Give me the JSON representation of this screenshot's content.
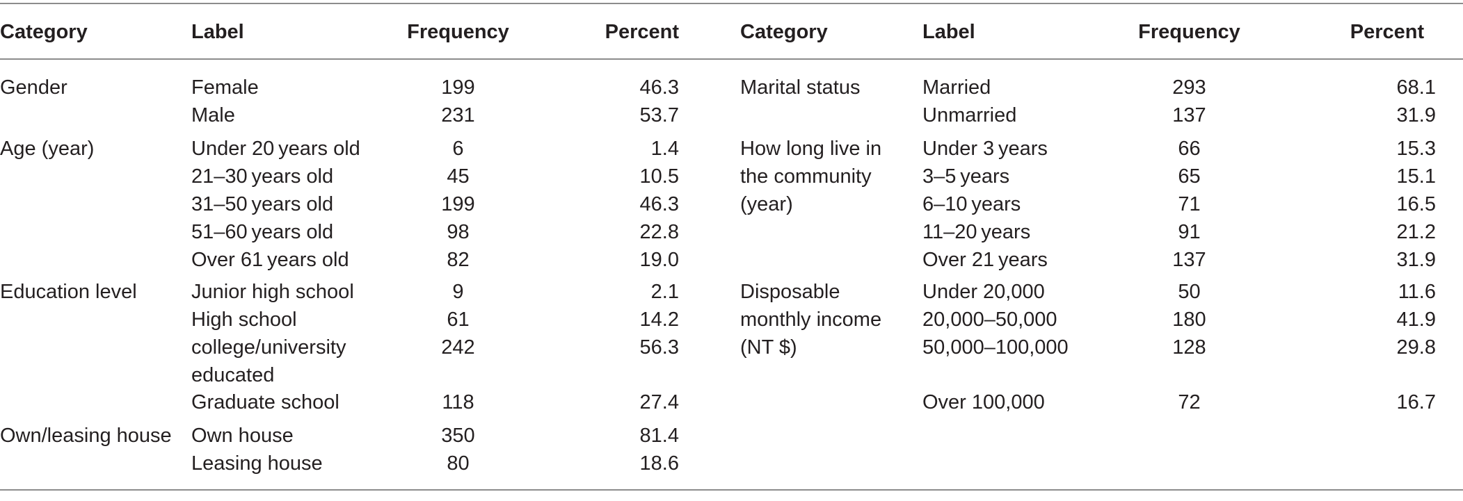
{
  "headers": {
    "left": {
      "category": "Category",
      "label": "Label",
      "frequency": "Frequency",
      "percent": "Percent"
    },
    "right": {
      "category": "Category",
      "label": "Label",
      "frequency": "Frequency",
      "percent": "Percent"
    }
  },
  "left_rows": [
    {
      "category": "Gender",
      "label": "Female",
      "frequency": "199",
      "percent": "46.3"
    },
    {
      "category": "",
      "label": "Male",
      "frequency": "231",
      "percent": "53.7"
    },
    {
      "category": "Age (year)",
      "label": "Under 20 years old",
      "frequency": "6",
      "percent": "1.4"
    },
    {
      "category": "",
      "label": "21–30 years old",
      "frequency": "45",
      "percent": "10.5"
    },
    {
      "category": "",
      "label": "31–50 years old",
      "frequency": "199",
      "percent": "46.3"
    },
    {
      "category": "",
      "label": "51–60 years old",
      "frequency": "98",
      "percent": "22.8"
    },
    {
      "category": "",
      "label": "Over 61 years old",
      "frequency": "82",
      "percent": "19.0"
    },
    {
      "category": "Education level",
      "label": "Junior high school",
      "frequency": "9",
      "percent": "2.1"
    },
    {
      "category": "",
      "label": "High school",
      "frequency": "61",
      "percent": "14.2"
    },
    {
      "category": "",
      "label": "college/university",
      "label2": "educated",
      "frequency": "242",
      "percent": "56.3"
    },
    {
      "category": "",
      "label": "Graduate school",
      "frequency": "118",
      "percent": "27.4"
    },
    {
      "category": "Own/leasing house",
      "label": "Own house",
      "frequency": "350",
      "percent": "81.4"
    },
    {
      "category": "",
      "label": "Leasing house",
      "frequency": "80",
      "percent": "18.6"
    }
  ],
  "right_rows": [
    {
      "category": "Marital status",
      "label": "Married",
      "frequency": "293",
      "percent": "68.1"
    },
    {
      "category": "",
      "label": "Unmarried",
      "frequency": "137",
      "percent": "31.9"
    },
    {
      "category": "How long live in",
      "category2": "the community",
      "category3": "(year)",
      "label": "Under 3 years",
      "frequency": "66",
      "percent": "15.3"
    },
    {
      "category": "",
      "label": "3–5 years",
      "frequency": "65",
      "percent": "15.1"
    },
    {
      "category": "",
      "label": "6–10 years",
      "frequency": "71",
      "percent": "16.5"
    },
    {
      "category": "",
      "label": "11–20 years",
      "frequency": "91",
      "percent": "21.2"
    },
    {
      "category": "",
      "label": "Over 21 years",
      "frequency": "137",
      "percent": "31.9"
    },
    {
      "category": "Disposable",
      "category2": "monthly income",
      "category3": "(NT $)",
      "label": "Under 20,000",
      "frequency": "50",
      "percent": "11.6"
    },
    {
      "category": "",
      "label": "20,000–50,000",
      "frequency": "180",
      "percent": "41.9"
    },
    {
      "category": "",
      "label": "50,000–100,000",
      "frequency": "128",
      "percent": "29.8"
    },
    {
      "category": "",
      "label": "Over 100,000",
      "frequency": "72",
      "percent": "16.7"
    }
  ]
}
